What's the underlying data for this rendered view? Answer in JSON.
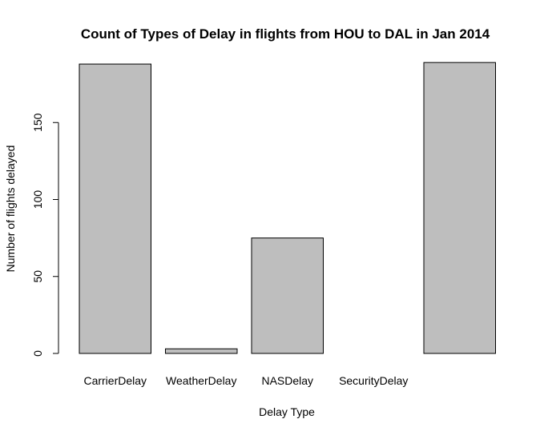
{
  "chart_data": {
    "type": "bar",
    "title": "Count of Types of Delay in flights from HOU to DAL in Jan 2014",
    "xlabel": "Delay Type",
    "ylabel": "Number of flights delayed",
    "categories": [
      "CarrierDelay",
      "WeatherDelay",
      "NASDelay",
      "SecurityDelay",
      ""
    ],
    "values": [
      188,
      3,
      75,
      0,
      189
    ],
    "yticks": [
      0,
      50,
      100,
      150
    ],
    "ylim": [
      0,
      189
    ],
    "grid": false,
    "legend": "none",
    "bar_color": "#bebebe",
    "border_color": "#000000"
  }
}
